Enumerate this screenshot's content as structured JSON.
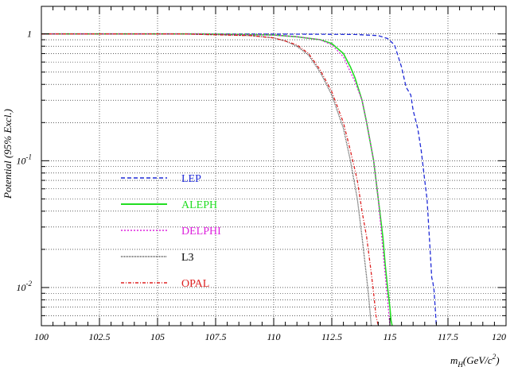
{
  "chart_data": {
    "type": "line",
    "title": "",
    "xlabel": {
      "main": "m",
      "sub": "H",
      "rest": "(GeV/c",
      "sup": "2",
      "close": ")"
    },
    "ylabel": "Potential (95% Excl.)",
    "xlim": [
      100,
      120
    ],
    "ylim": [
      0.005,
      1.65
    ],
    "yscale": "log",
    "grid": true,
    "legend_position": "center-left",
    "x_ticks": [
      "100",
      "102.5",
      "105",
      "107.5",
      "110",
      "112.5",
      "115",
      "117.5",
      "120"
    ],
    "y_ticks": [
      {
        "value": 1,
        "base": "1",
        "exp": ""
      },
      {
        "value": 0.1,
        "base": "10",
        "exp": "-1"
      },
      {
        "value": 0.01,
        "base": "10",
        "exp": "-2"
      }
    ],
    "series": [
      {
        "name": "LEP",
        "color": "#1f2ad6",
        "dash": "5,3",
        "x": [
          100,
          108,
          112,
          113.5,
          114.5,
          114.9,
          115.2,
          115.5,
          115.7,
          115.9,
          116.0,
          116.2,
          116.35,
          116.5,
          116.6,
          116.7,
          116.8,
          116.85,
          116.9,
          116.95,
          117.0
        ],
        "y": [
          1.0,
          1.0,
          0.995,
          0.99,
          0.97,
          0.92,
          0.82,
          0.55,
          0.38,
          0.33,
          0.25,
          0.18,
          0.12,
          0.07,
          0.05,
          0.025,
          0.012,
          0.011,
          0.0095,
          0.007,
          0.005
        ]
      },
      {
        "name": "ALEPH",
        "color": "#22dd22",
        "dash": "",
        "x": [
          100,
          107,
          110,
          111,
          112,
          112.5,
          113,
          113.3,
          113.5,
          113.8,
          114.0,
          114.3,
          114.5,
          114.7,
          114.8,
          114.9,
          115.0,
          115.05,
          115.1
        ],
        "y": [
          1.0,
          1.0,
          0.98,
          0.95,
          0.9,
          0.84,
          0.7,
          0.55,
          0.45,
          0.3,
          0.2,
          0.1,
          0.05,
          0.025,
          0.015,
          0.01,
          0.007,
          0.0055,
          0.005
        ]
      },
      {
        "name": "DELPHI",
        "color": "#dd22dd",
        "dash": "2,2",
        "x": [
          100,
          107,
          110,
          111,
          112,
          112.5,
          113,
          113.3,
          113.5,
          113.8,
          114.0,
          114.3,
          114.5,
          114.7,
          114.9,
          115.0
        ],
        "y": [
          1.0,
          1.0,
          0.98,
          0.95,
          0.9,
          0.82,
          0.66,
          0.5,
          0.42,
          0.3,
          0.2,
          0.1,
          0.05,
          0.02,
          0.008,
          0.005
        ]
      },
      {
        "name": "L3",
        "color": "#444444",
        "dash": "1,1",
        "x": [
          100,
          106,
          109,
          110,
          110.5,
          111,
          111.5,
          112,
          112.5,
          113,
          113.3,
          113.6,
          113.8,
          114.0,
          114.1,
          114.2
        ],
        "y": [
          1.0,
          1.0,
          0.97,
          0.93,
          0.88,
          0.8,
          0.68,
          0.5,
          0.33,
          0.18,
          0.1,
          0.05,
          0.025,
          0.012,
          0.008,
          0.005
        ]
      },
      {
        "name": "OPAL",
        "color": "#dd2222",
        "dash": "4,2,1,2",
        "x": [
          100,
          106,
          109,
          110,
          110.5,
          111,
          111.5,
          112,
          112.5,
          113,
          113.3,
          113.6,
          113.8,
          114.0,
          114.2,
          114.3,
          114.4,
          114.5
        ],
        "y": [
          1.0,
          1.0,
          0.97,
          0.93,
          0.88,
          0.82,
          0.7,
          0.52,
          0.35,
          0.2,
          0.12,
          0.07,
          0.04,
          0.025,
          0.013,
          0.009,
          0.006,
          0.005
        ]
      }
    ]
  }
}
